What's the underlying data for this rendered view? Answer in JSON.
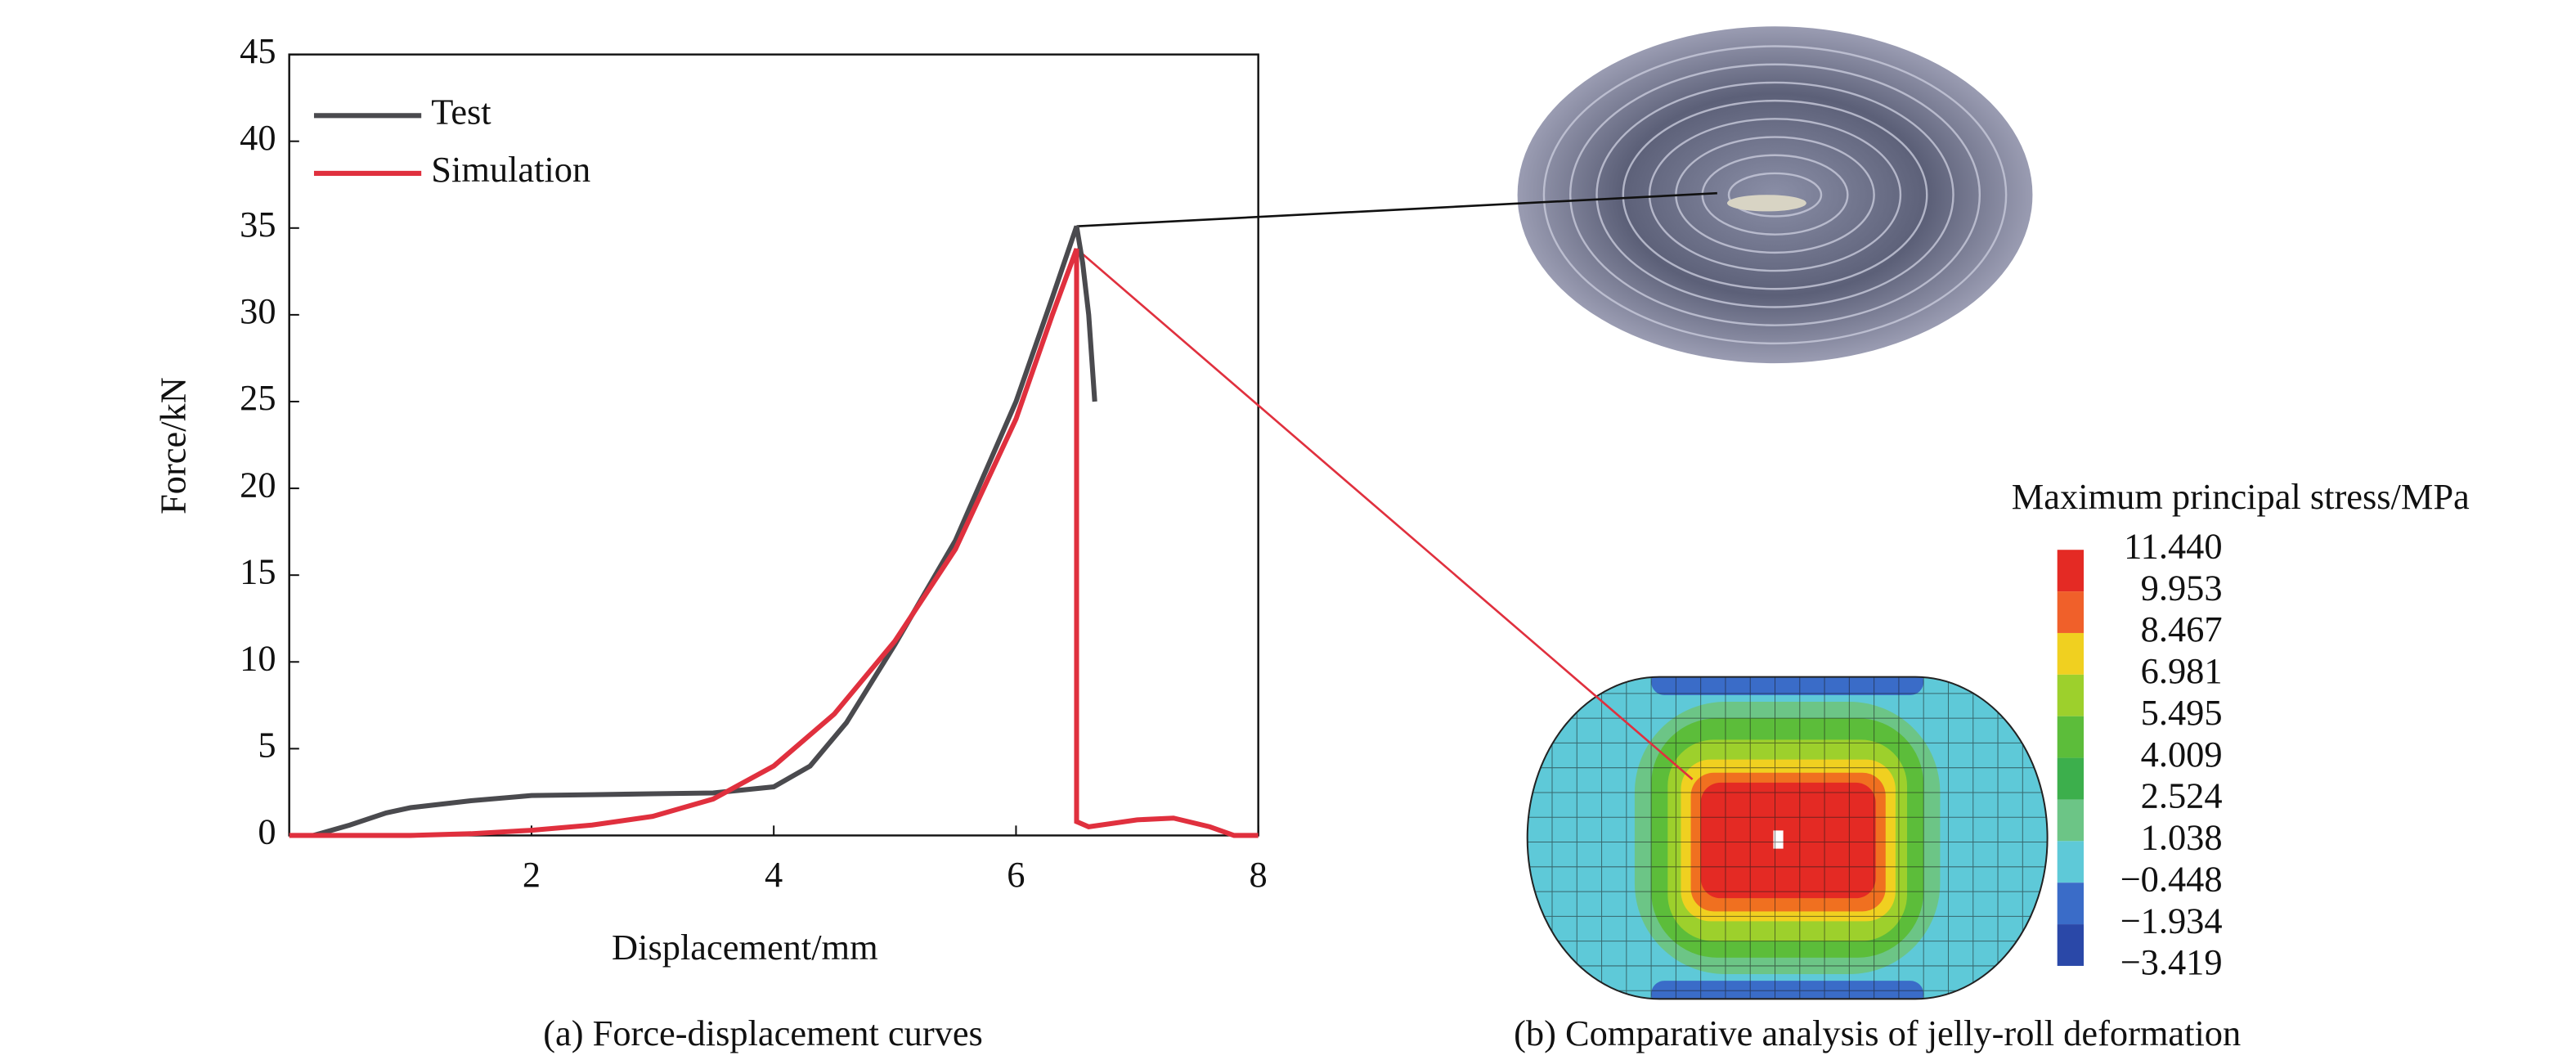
{
  "chart_data": {
    "type": "line",
    "xlabel": "Displacement/mm",
    "ylabel": "Force/kN",
    "xlim": [
      0,
      8
    ],
    "xticks": [
      2,
      4,
      6,
      8
    ],
    "ylim": [
      0,
      45
    ],
    "yticks": [
      0,
      5,
      10,
      15,
      20,
      25,
      30,
      35,
      40,
      45
    ],
    "legend": "upper left",
    "series": [
      {
        "name": "Test",
        "color": "#4a4a4e",
        "x": [
          0.2,
          0.5,
          0.8,
          1,
          1.5,
          2,
          2.5,
          3,
          3.5,
          4,
          4.3,
          4.6,
          5,
          5.5,
          6,
          6.3,
          6.5,
          6.55,
          6.6,
          6.65
        ],
        "values": [
          0,
          0.6,
          1.3,
          1.6,
          2.0,
          2.3,
          2.35,
          2.4,
          2.45,
          2.8,
          4,
          6.5,
          11,
          17,
          25,
          31,
          35.1,
          33,
          30,
          25
        ]
      },
      {
        "name": "Simulation",
        "color": "#e0303e",
        "x": [
          0,
          1,
          1.5,
          2,
          2.5,
          3,
          3.5,
          4,
          4.5,
          5,
          5.5,
          6,
          6.3,
          6.5,
          6.5,
          6.6,
          7,
          7.3,
          7.6,
          7.8,
          8
        ],
        "values": [
          0,
          0,
          0.1,
          0.3,
          0.6,
          1.1,
          2.1,
          4,
          7,
          11.2,
          16.5,
          24,
          30,
          33.8,
          0.8,
          0.5,
          0.9,
          1.0,
          0.5,
          0,
          0
        ]
      }
    ]
  },
  "colorbar": {
    "title": "Maximum principal stress/MPa",
    "labels": [
      "11.440",
      "9.953",
      "8.467",
      "6.981",
      "5.495",
      "4.009",
      "2.524",
      "1.038",
      "−0.448",
      "−1.934",
      "−3.419"
    ]
  },
  "captions": [
    "(a) Force-displacement curves",
    "(b) Comparative analysis of jelly-roll deformation"
  ]
}
